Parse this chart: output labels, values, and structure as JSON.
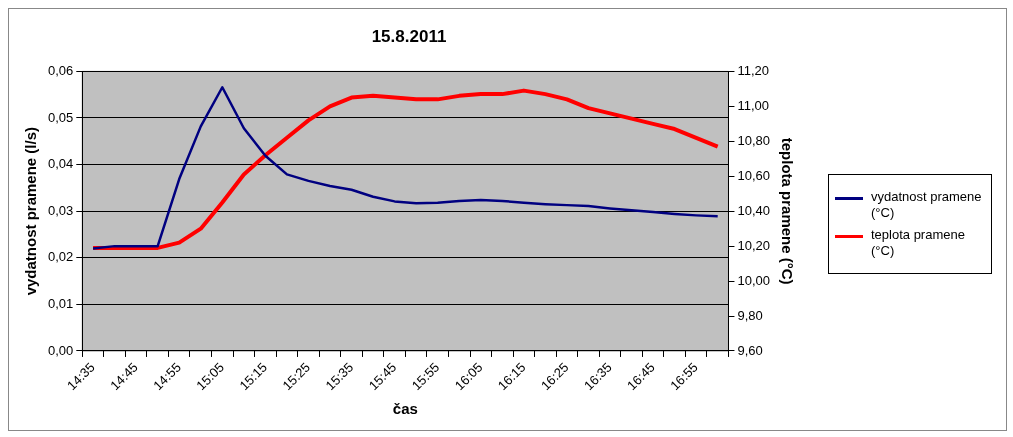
{
  "chart_data": {
    "type": "line",
    "title": "15.8.2011",
    "xlabel": "čas",
    "ylabel": "vydatnost pramene (l/s)",
    "y2label": "teplota pramene (°C)",
    "categories": [
      "14:35",
      null,
      "14:45",
      null,
      "14:55",
      null,
      "15:05",
      null,
      "15:15",
      null,
      "15:25",
      null,
      "15:35",
      null,
      "15:45",
      null,
      "15:55",
      null,
      "16:05",
      null,
      "16:15",
      null,
      "16:25",
      null,
      "16:35",
      null,
      "16:45",
      null,
      "16:55",
      null
    ],
    "series": [
      {
        "name": "vydatnost pramene (°C)",
        "color": "#000080",
        "values": [
          0.022,
          0.0225,
          0.0225,
          0.0225,
          0.0369,
          0.0482,
          0.0566,
          0.0478,
          0.0419,
          0.0379,
          0.0365,
          0.0354,
          0.0346,
          0.0331,
          0.0321,
          0.0317,
          0.0318,
          0.0322,
          0.0324,
          0.0322,
          0.0318,
          0.0315,
          0.0313,
          0.0311,
          0.0306,
          0.0302,
          0.0298,
          0.0294,
          0.0291,
          0.0289
        ]
      },
      {
        "name": "teplota pramene (°C)",
        "color": "#ff0000",
        "axis": "y2",
        "values": [
          10.19,
          10.19,
          10.19,
          10.19,
          10.22,
          10.3,
          10.45,
          10.61,
          10.72,
          10.82,
          10.92,
          11.0,
          11.05,
          11.06,
          11.05,
          11.04,
          11.04,
          11.06,
          11.07,
          11.07,
          11.09,
          11.07,
          11.04,
          10.99,
          10.96,
          10.93,
          10.9,
          10.87,
          10.82,
          10.77
        ]
      }
    ],
    "ylim": [
      0,
      0.06
    ],
    "yticks": [
      {
        "value": 0,
        "label": "0,00"
      },
      {
        "value": 0.01,
        "label": "0,01"
      },
      {
        "value": 0.02,
        "label": "0,02"
      },
      {
        "value": 0.03,
        "label": "0,03"
      },
      {
        "value": 0.04,
        "label": "0,04"
      },
      {
        "value": 0.05,
        "label": "0,05"
      },
      {
        "value": 0.06,
        "label": "0,06"
      }
    ],
    "y2lim": [
      9.6,
      11.2
    ],
    "y2ticks": [
      {
        "value": 9.6,
        "label": "9,60"
      },
      {
        "value": 9.8,
        "label": "9,80"
      },
      {
        "value": 10,
        "label": "10,00"
      },
      {
        "value": 10.2,
        "label": "10,20"
      },
      {
        "value": 10.4,
        "label": "10,40"
      },
      {
        "value": 10.6,
        "label": "10,60"
      },
      {
        "value": 10.8,
        "label": "10,80"
      },
      {
        "value": 11,
        "label": "11,00"
      },
      {
        "value": 11.2,
        "label": "11,20"
      }
    ],
    "grid": "y",
    "legend": "right",
    "marker": "none",
    "line_style": "solid"
  }
}
